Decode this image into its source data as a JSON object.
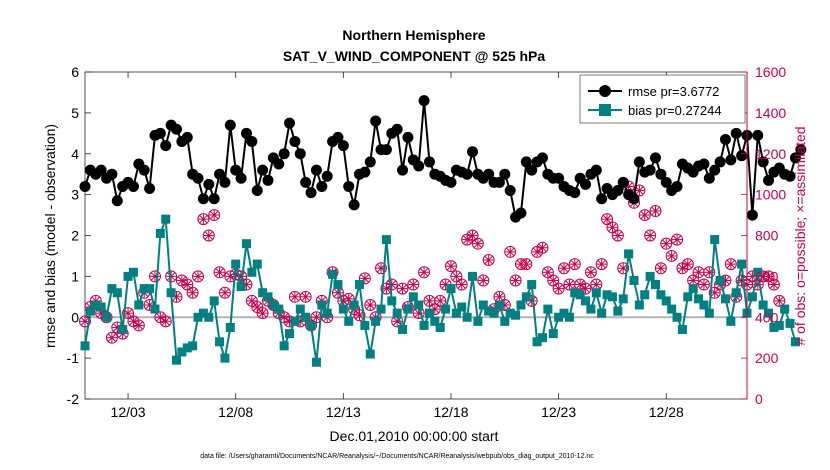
{
  "colors": {
    "rmse": "#000000",
    "bias": "#008080",
    "obs": "#c8004e",
    "zero_line": "#b3b3b3",
    "axis": "#262626"
  },
  "chart_data": {
    "type": "line",
    "title": [
      "Northern Hemisphere",
      "SAT_V_WIND_COMPONENT @ 525 hPa"
    ],
    "xlabel": "Dec.01,2010 00:00:00 start",
    "ylabel_left": "rmse and bias (model - observation)",
    "ylabel_right": "# of obs: o=possible; ×=assimilated",
    "footer": "data file: /Users/gharamti/Documents/NCAR/Reanalysis/~/Documents/NCAR/Reanalysis/webpub/obs_diag_output_2010-12.nc",
    "x_range": [
      1,
      31.75
    ],
    "x_step_days": 0.25,
    "x_ticks": [
      3,
      8,
      13,
      18,
      23,
      28
    ],
    "x_tick_labels": [
      "12/03",
      "12/08",
      "12/13",
      "12/18",
      "12/23",
      "12/28"
    ],
    "ylim_left": [
      -2,
      6
    ],
    "y_ticks_left": [
      -2,
      -1,
      0,
      1,
      2,
      3,
      4,
      5,
      6
    ],
    "ylim_right": [
      0,
      1600
    ],
    "y_ticks_right": [
      0,
      200,
      400,
      600,
      800,
      1000,
      1200,
      1400,
      1600
    ],
    "legend_position": "top-right",
    "series": [
      {
        "name": "rmse pr=3.6772",
        "axis": "left",
        "marker": "circle",
        "values": [
          3.2,
          3.6,
          3.5,
          3.6,
          3.4,
          3.5,
          2.85,
          3.2,
          3.3,
          3.2,
          3.75,
          3.6,
          3.15,
          4.45,
          4.5,
          4.2,
          4.7,
          4.6,
          4.3,
          4.4,
          3.5,
          3.4,
          2.9,
          3.25,
          2.9,
          3.5,
          3.3,
          4.7,
          3.6,
          3.4,
          4.5,
          4.3,
          3.1,
          3.6,
          3.35,
          3.9,
          3.75,
          4.0,
          4.75,
          4.3,
          4.0,
          3.3,
          3.05,
          3.6,
          3.2,
          3.45,
          4.3,
          4.4,
          4.2,
          3.2,
          2.75,
          3.5,
          3.55,
          3.8,
          4.8,
          4.1,
          4.1,
          4.5,
          4.6,
          3.6,
          4.4,
          3.85,
          3.7,
          5.3,
          3.8,
          3.5,
          3.45,
          3.35,
          3.3,
          3.6,
          3.55,
          3.5,
          4.05,
          3.5,
          3.4,
          3.5,
          3.3,
          3.3,
          3.5,
          3.1,
          2.45,
          2.55,
          3.8,
          3.6,
          3.8,
          3.9,
          3.5,
          3.4,
          3.4,
          3.2,
          3.1,
          3.05,
          3.4,
          3.25,
          3.5,
          3.6,
          2.9,
          3.15,
          3.0,
          3.1,
          3.3,
          3.0,
          2.9,
          3.8,
          3.55,
          3.6,
          3.9,
          3.5,
          3.3,
          3.1,
          3.2,
          3.75,
          3.65,
          3.55,
          3.7,
          3.75,
          3.4,
          3.6,
          3.8,
          4.35,
          3.85,
          4.5,
          3.95,
          4.45,
          2.5,
          4.45,
          3.8,
          3.35,
          3.55,
          3.65,
          3.5,
          3.45,
          3.9,
          4.1
        ]
      },
      {
        "name": "bias pr=0.27244",
        "axis": "left",
        "marker": "square",
        "values": [
          -0.7,
          0.15,
          0.3,
          0.25,
          0.0,
          0.7,
          0.6,
          -0.3,
          1.0,
          1.1,
          0.3,
          0.7,
          0.7,
          0.2,
          2.05,
          2.4,
          0.6,
          -1.05,
          -0.85,
          -0.75,
          -0.7,
          0.0,
          0.1,
          0.0,
          0.4,
          -0.6,
          -1.0,
          -0.25,
          1.3,
          0.75,
          1.8,
          1.1,
          1.3,
          0.6,
          0.5,
          0.3,
          0.2,
          -0.7,
          -0.4,
          -0.1,
          0.2,
          0.0,
          -0.2,
          -1.1,
          0.3,
          0.1,
          1.05,
          0.8,
          0.2,
          -0.1,
          0.3,
          0.8,
          -0.2,
          -0.9,
          -0.1,
          0.2,
          1.9,
          0.4,
          0.1,
          -0.3,
          0.2,
          0.5,
          0.3,
          -0.2,
          0.1,
          -0.1,
          -0.25,
          0.2,
          0.7,
          0.1,
          0.25,
          0.0,
          1.0,
          -0.1,
          0.3,
          0.15,
          0.1,
          0.3,
          -0.1,
          0.1,
          0.05,
          0.3,
          0.5,
          0.8,
          -0.6,
          -0.5,
          0.2,
          -0.4,
          0.0,
          0.1,
          0.0,
          0.6,
          0.55,
          0.4,
          0.2,
          0.6,
          0.1,
          0.55,
          0.5,
          0.15,
          0.45,
          1.55,
          0.9,
          0.3,
          0.55,
          1.0,
          0.8,
          0.55,
          0.4,
          0.2,
          0.0,
          -0.3,
          0.5,
          0.7,
          0.45,
          0.3,
          0.1,
          1.9,
          0.9,
          0.45,
          -0.1,
          0.6,
          1.3,
          0.1,
          0.5,
          1.1,
          0.3,
          0.1,
          -0.25,
          -0.2,
          0.2,
          -0.15,
          -0.6
        ]
      },
      {
        "name": "# obs possible",
        "axis": "right",
        "marker": "circle-open",
        "values": [
          380,
          450,
          480,
          420,
          400,
          300,
          350,
          320,
          420,
          380,
          360,
          520,
          460,
          600,
          400,
          380,
          600,
          500,
          580,
          560,
          520,
          600,
          880,
          800,
          900,
          620,
          520,
          600,
          610,
          600,
          560,
          480,
          450,
          420,
          480,
          460,
          420,
          400,
          380,
          500,
          380,
          500,
          360,
          400,
          480,
          400,
          620,
          520,
          480,
          490,
          440,
          410,
          590,
          460,
          400,
          640,
          540,
          560,
          380,
          540,
          450,
          560,
          420,
          620,
          480,
          440,
          480,
          560,
          650,
          600,
          560,
          780,
          800,
          760,
          580,
          680,
          440,
          500,
          460,
          720,
          580,
          660,
          660,
          480,
          720,
          740,
          620,
          580,
          540,
          640,
          560,
          660,
          560,
          540,
          620,
          560,
          660,
          880,
          840,
          800,
          640,
          1040,
          960,
          1020,
          900,
          800,
          920,
          640,
          760,
          700,
          780,
          640,
          660,
          580,
          620,
          560,
          620,
          520,
          560,
          580,
          660,
          500,
          580,
          560,
          600,
          560,
          600,
          600,
          560,
          480
        ]
      },
      {
        "name": "# obs assimilated",
        "axis": "right",
        "marker": "x",
        "values": [
          380,
          450,
          480,
          420,
          400,
          300,
          350,
          320,
          420,
          380,
          360,
          520,
          460,
          600,
          400,
          380,
          600,
          500,
          580,
          560,
          520,
          600,
          880,
          800,
          900,
          620,
          520,
          600,
          610,
          600,
          560,
          480,
          450,
          420,
          480,
          460,
          420,
          400,
          380,
          500,
          380,
          500,
          360,
          400,
          480,
          400,
          620,
          520,
          480,
          490,
          440,
          410,
          590,
          460,
          400,
          640,
          540,
          560,
          380,
          540,
          450,
          560,
          420,
          620,
          480,
          440,
          480,
          560,
          650,
          600,
          560,
          780,
          800,
          760,
          580,
          680,
          440,
          500,
          460,
          720,
          580,
          660,
          660,
          480,
          720,
          740,
          620,
          580,
          540,
          640,
          560,
          660,
          560,
          540,
          620,
          560,
          660,
          880,
          840,
          800,
          640,
          1040,
          960,
          1020,
          900,
          800,
          920,
          640,
          760,
          700,
          780,
          640,
          660,
          580,
          620,
          560,
          620,
          520,
          560,
          580,
          660,
          500,
          580,
          560,
          600,
          560,
          600,
          600,
          560,
          480
        ]
      }
    ]
  }
}
